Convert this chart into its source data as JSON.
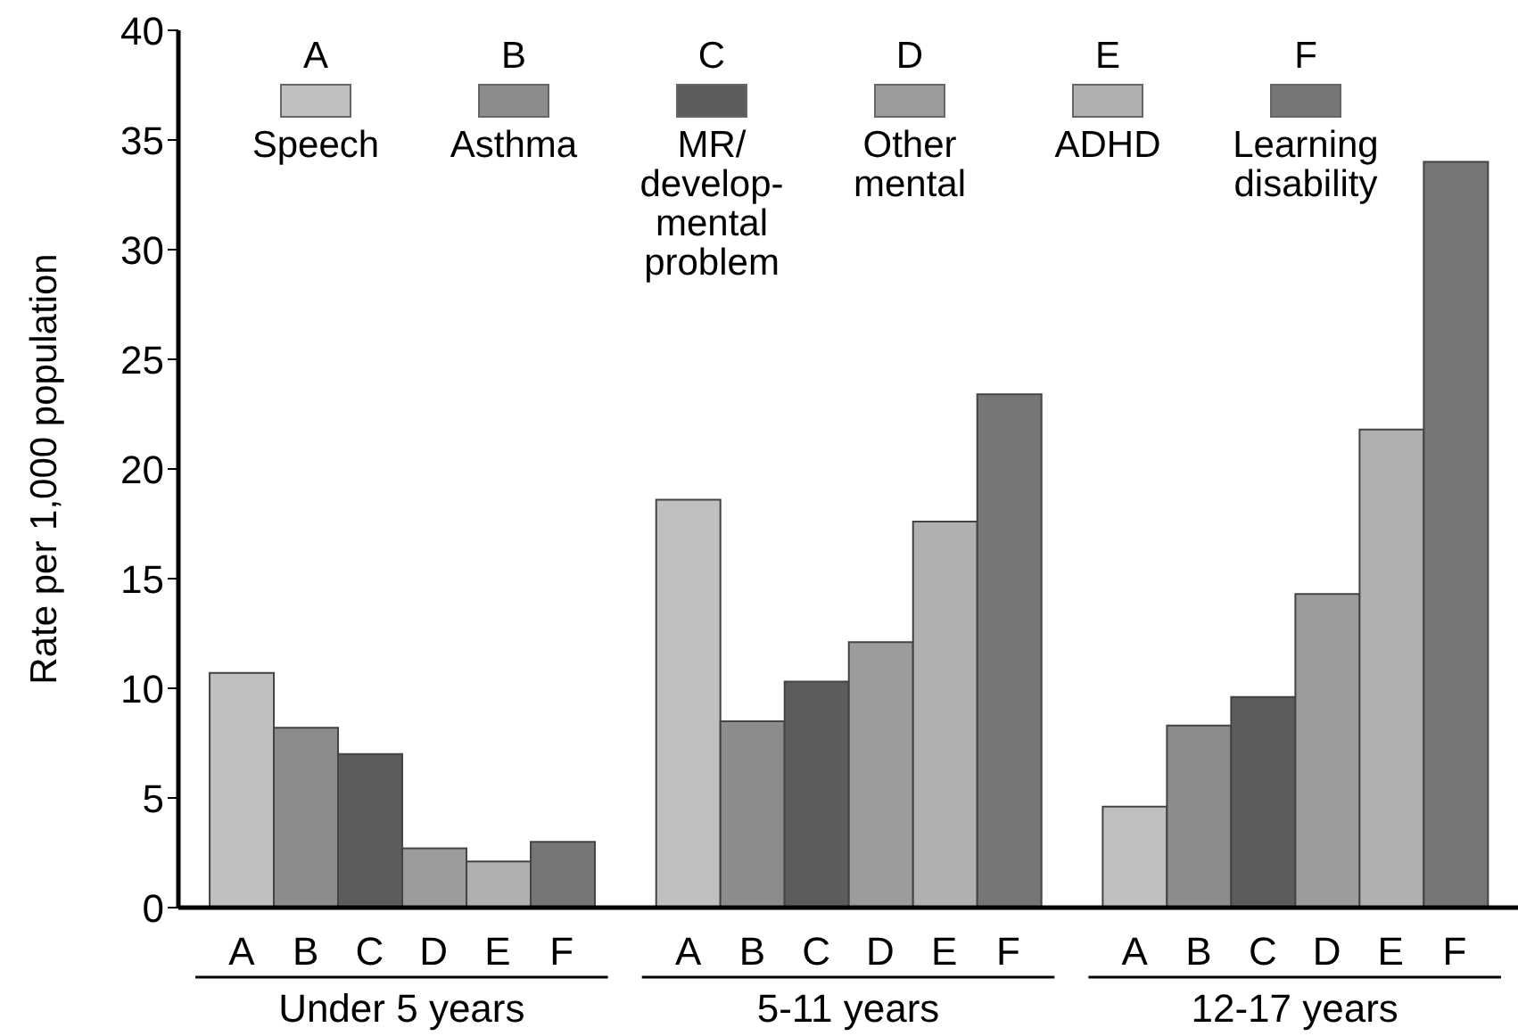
{
  "chart_data": {
    "type": "bar",
    "ylabel": "Rate per 1,000 population",
    "categories": [
      "Under 5 years",
      "5-11 years",
      "12-17 years"
    ],
    "series": [
      {
        "name": "Speech",
        "color": "#c0c0c0",
        "values": [
          10.7,
          18.6,
          4.6
        ]
      },
      {
        "name": "Asthma",
        "color": "#8c8c8c",
        "values": [
          8.2,
          8.5,
          8.3
        ]
      },
      {
        "name": "MR/\ndevelop-\nmental\nproblem",
        "color": "#5c5c5c",
        "values": [
          7.0,
          10.3,
          9.6
        ]
      },
      {
        "name": "Other\nmental",
        "color": "#9c9c9c",
        "values": [
          2.7,
          12.1,
          14.3
        ]
      },
      {
        "name": "ADHD",
        "color": "#b0b0b0",
        "values": [
          2.1,
          17.6,
          21.8
        ]
      },
      {
        "name": "Learning\ndisability",
        "color": "#767676",
        "values": [
          3.0,
          23.4,
          34.0
        ]
      }
    ],
    "annotations": [
      "A",
      "B",
      "C",
      "D",
      "E",
      "F"
    ],
    "ylim": [
      0,
      40
    ],
    "yticks": [
      0,
      5,
      10,
      15,
      20,
      25,
      30,
      35,
      40
    ],
    "legend": "top"
  }
}
